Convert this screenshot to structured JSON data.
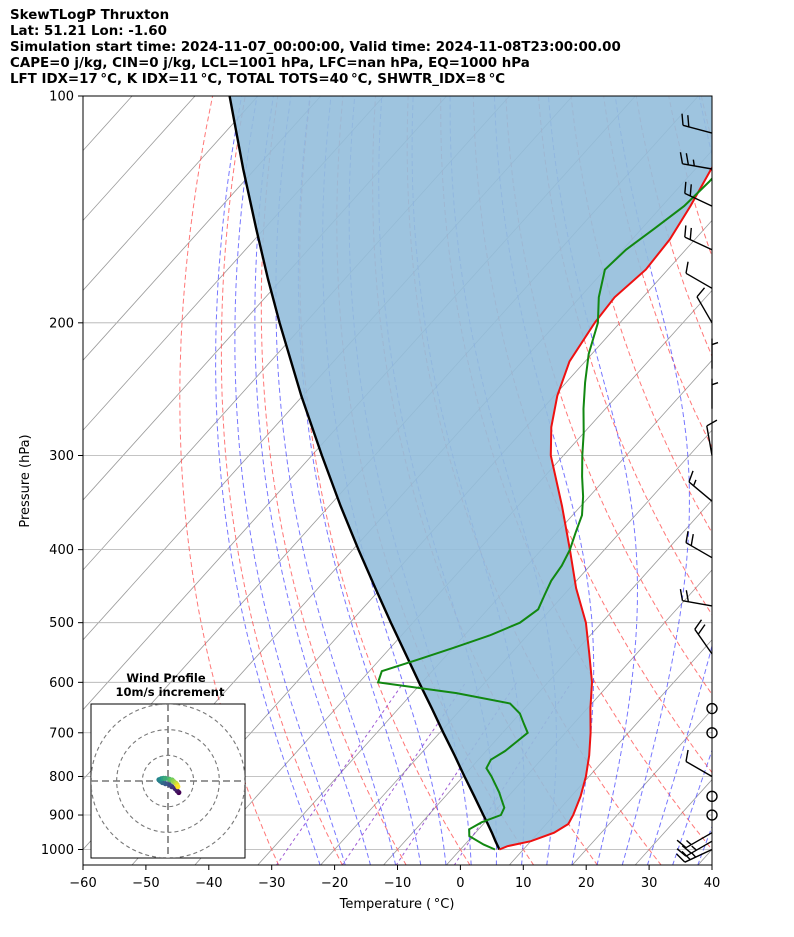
{
  "header": {
    "line1": "SkewTLogP Thruxton",
    "line2": "Lat: 51.21   Lon: -1.60",
    "line3": "Simulation start time: 2024-11-07_00:00:00, Valid time: 2024-11-08T23:00:00.00",
    "line4": "CAPE=0 j/kg, CIN=0 j/kg, LCL=1001 hPa, LFC=nan hPa, EQ=1000 hPa",
    "line5": "LFT IDX=17 °C, K IDX=11 °C, TOTAL TOTS=40 °C, SHWTR_IDX=8 °C"
  },
  "colors": {
    "temperature": "#ee1111",
    "dewpoint": "#118811",
    "parcel": "#000000",
    "cape_fill": "#94bedc",
    "dry_adiabat": "#ff4a4a",
    "moist_adiabat": "#4a4aff",
    "mixing_ratio": "#8833cc",
    "isotherm": "#999999",
    "grid": "#b0b0b0"
  },
  "chart_data": {
    "type": "line",
    "subtype": "skew-t log-p",
    "xlabel": "Temperature ( °C)",
    "ylabel": "Pressure (hPa)",
    "xlim": [
      -60,
      40
    ],
    "ylim": [
      1050,
      100
    ],
    "y_scale": "log",
    "x_ticks": [
      -60,
      -50,
      -40,
      -30,
      -20,
      -10,
      0,
      10,
      20,
      30,
      40
    ],
    "x_tick_labels": [
      "−60",
      "−50",
      "−40",
      "−30",
      "−20",
      "−10",
      "0",
      "10",
      "20",
      "30",
      "40"
    ],
    "y_ticks": [
      1000,
      900,
      800,
      700,
      600,
      500,
      400,
      300,
      200,
      100
    ],
    "y_tick_labels": [
      "1000",
      "900",
      "800",
      "700",
      "600",
      "500",
      "400",
      "300",
      "200",
      "100"
    ],
    "grid": true,
    "series": [
      {
        "key": "temperature",
        "p": [
          1000,
          990,
          975,
          950,
          925,
          900,
          850,
          800,
          750,
          700,
          650,
          600,
          550,
          500,
          450,
          400,
          350,
          300,
          275,
          250,
          225,
          200,
          185,
          170,
          155,
          140,
          125,
          112,
          100
        ],
        "t": [
          6.2,
          7,
          10,
          12.5,
          13.5,
          13,
          11.5,
          9.5,
          7,
          4,
          0.5,
          -3,
          -7.5,
          -12.5,
          -19,
          -25.5,
          -33,
          -42,
          -46,
          -49.5,
          -52.5,
          -54,
          -54.5,
          -53.5,
          -54,
          -55.5,
          -57.5,
          -59,
          -61
        ]
      },
      {
        "key": "dewpoint",
        "p": [
          1000,
          985,
          960,
          940,
          920,
          900,
          880,
          860,
          840,
          800,
          780,
          760,
          740,
          720,
          700,
          680,
          660,
          640,
          620,
          600,
          580,
          560,
          540,
          520,
          500,
          480,
          460,
          440,
          420,
          400,
          380,
          360,
          340,
          320,
          300,
          280,
          260,
          240,
          220,
          200,
          185,
          170,
          160,
          150,
          140,
          130,
          120,
          110,
          100
        ],
        "td": [
          5.5,
          3,
          -0.5,
          -1.5,
          -0.5,
          1.5,
          1,
          -0.5,
          -2,
          -5.5,
          -7.5,
          -8,
          -7,
          -6.5,
          -6,
          -8,
          -10,
          -13,
          -23,
          -37,
          -38,
          -34,
          -30,
          -26,
          -23,
          -22,
          -23,
          -24,
          -24.5,
          -25.5,
          -27,
          -28.5,
          -31,
          -34,
          -37,
          -40,
          -43.5,
          -47,
          -50.5,
          -53.5,
          -57,
          -60,
          -59.5,
          -58,
          -56.5,
          -56,
          -56,
          -55.5,
          -54
        ]
      },
      {
        "key": "parcel",
        "p": [
          1000,
          975,
          950,
          925,
          900,
          850,
          800,
          750,
          700,
          650,
          600,
          550,
          500,
          450,
          400,
          350,
          300,
          250,
          200,
          175,
          150,
          125,
          100
        ],
        "t": [
          6.2,
          4.4,
          2.6,
          0.7,
          -1.3,
          -5.4,
          -9.8,
          -14.4,
          -19.4,
          -24.7,
          -30.5,
          -36.7,
          -43.5,
          -50.9,
          -59.1,
          -68.2,
          -78.4,
          -90.2,
          -104.1,
          -112.2,
          -121.3,
          -131.9,
          -144.5
        ]
      }
    ],
    "winds": [
      {
        "p": 1000,
        "speed": "25",
        "dir": 245
      },
      {
        "p": 975,
        "speed": "25",
        "dir": 240
      },
      {
        "p": 950,
        "speed": "15",
        "dir": 240
      },
      {
        "p": 900,
        "speed": "calm",
        "dir": 0
      },
      {
        "p": 850,
        "speed": "calm",
        "dir": 0
      },
      {
        "p": 800,
        "speed": "10",
        "dir": 300
      },
      {
        "p": 700,
        "speed": "calm",
        "dir": 0
      },
      {
        "p": 650,
        "speed": "calm",
        "dir": 0
      },
      {
        "p": 550,
        "speed": "20",
        "dir": 325
      },
      {
        "p": 475,
        "speed": "20",
        "dir": 280
      },
      {
        "p": 410,
        "speed": "20",
        "dir": 300
      },
      {
        "p": 345,
        "speed": "15",
        "dir": 310
      },
      {
        "p": 300,
        "speed": "10",
        "dir": 350
      },
      {
        "p": 260,
        "speed": "5",
        "dir": 360
      },
      {
        "p": 230,
        "speed": "5",
        "dir": 360
      },
      {
        "p": 200,
        "speed": "10",
        "dir": 330
      },
      {
        "p": 180,
        "speed": "10",
        "dir": 300
      },
      {
        "p": 160,
        "speed": "20",
        "dir": 295
      },
      {
        "p": 140,
        "speed": "20",
        "dir": 295
      },
      {
        "p": 125,
        "speed": "25",
        "dir": 280
      },
      {
        "p": 112,
        "speed": "20",
        "dir": 285
      }
    ],
    "inset": {
      "type": "scatter",
      "title_line1": "Wind Profile",
      "title_line2": "10m/s increment",
      "u": [
        4.2,
        3.6,
        2.8,
        1.5,
        0.5,
        -1.0,
        -2.2,
        -3.0,
        -3.5,
        -2.6,
        -1.8,
        -1.0,
        0.5,
        1.0,
        1.6,
        2.2,
        3.0,
        3.5,
        3.8
      ],
      "v": [
        -4.5,
        -3.8,
        -3.0,
        -2.2,
        -1.4,
        -1.0,
        -0.6,
        0.0,
        0.5,
        0.9,
        1.0,
        1.0,
        0.7,
        0.4,
        0.4,
        -0.2,
        -0.8,
        -1.4,
        -2.2
      ],
      "ring_radii": [
        10,
        20,
        30
      ],
      "lim": [
        -30,
        30
      ]
    }
  }
}
